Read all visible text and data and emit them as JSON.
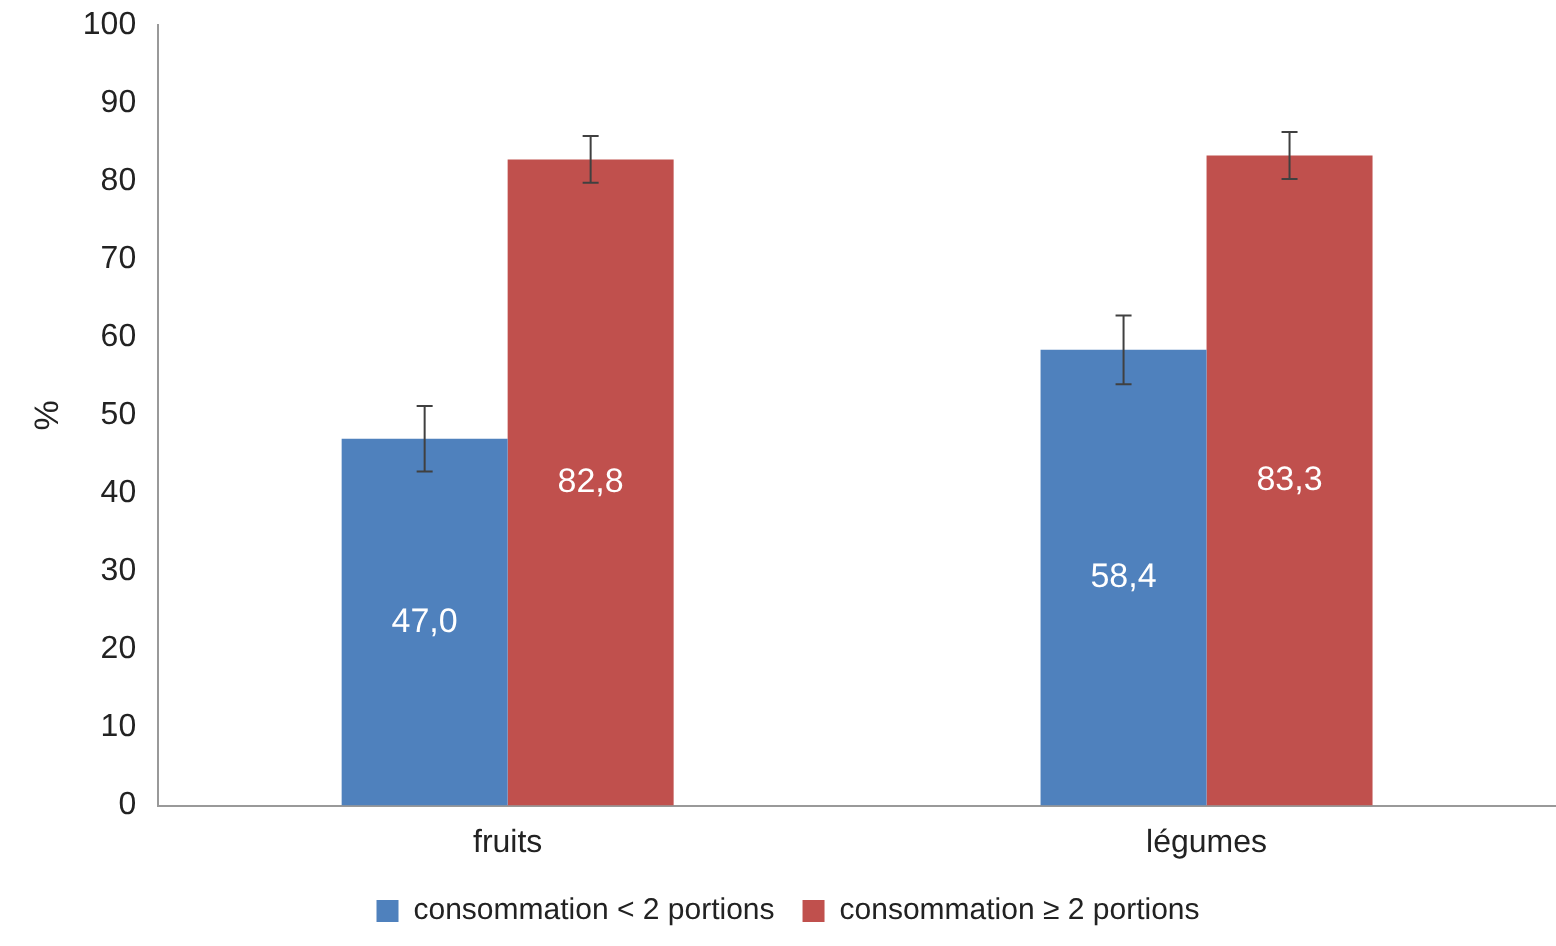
{
  "chart_data": {
    "type": "bar",
    "ylabel": "%",
    "categories": [
      "fruits",
      "légumes"
    ],
    "series": [
      {
        "name": "consommation < 2 portions",
        "color": "#4f81bd",
        "values": [
          47.0,
          58.4
        ],
        "errors": [
          4.2,
          4.4
        ],
        "value_labels": [
          "47,0",
          "58,4"
        ]
      },
      {
        "name": "consommation ≥ 2 portions",
        "color": "#c0504d",
        "values": [
          82.8,
          83.3
        ],
        "errors": [
          3,
          3
        ],
        "value_labels": [
          "82,8",
          "83,3"
        ]
      }
    ],
    "ylim": [
      0,
      100
    ],
    "yticks": [
      0,
      10,
      20,
      30,
      40,
      50,
      60,
      70,
      80,
      90,
      100
    ],
    "grid": false,
    "legend": "bottom"
  }
}
